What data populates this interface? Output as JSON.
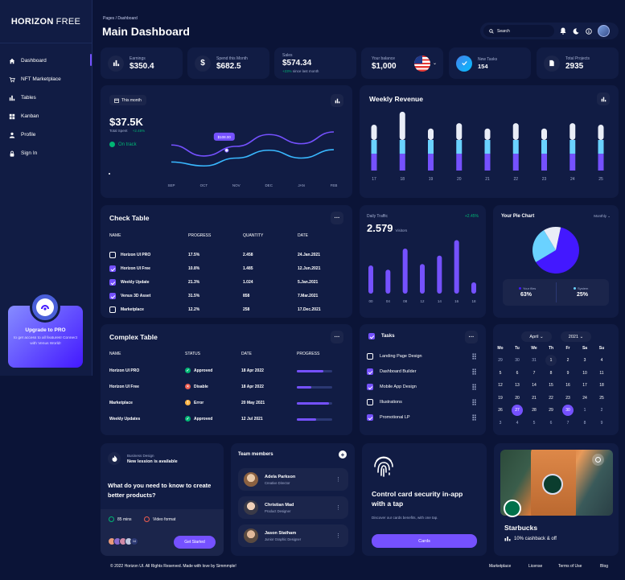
{
  "brand": {
    "bold": "HORIZON",
    "light": "FREE"
  },
  "nav": [
    {
      "label": "Dashboard"
    },
    {
      "label": "NFT Marketplace"
    },
    {
      "label": "Tables"
    },
    {
      "label": "Kanban"
    },
    {
      "label": "Profile"
    },
    {
      "label": "Sign In"
    }
  ],
  "upgrade": {
    "title": "Upgrade to PRO",
    "text": "to get access to all features! Connect with Venus World!"
  },
  "header": {
    "breadcrumb": "Pages / Dashboard",
    "title": "Main Dashboard",
    "search_placeholder": "Search"
  },
  "stats": [
    {
      "label": "Earnings",
      "value": "$350.4"
    },
    {
      "label": "Spend this Month",
      "value": "$682.5"
    },
    {
      "label": "Sales",
      "value": "$574.34",
      "change": "+23%",
      "change_text": "since last month"
    },
    {
      "label": "Your balance",
      "value": "$1,000"
    },
    {
      "label": "New Tasks",
      "value": "154"
    },
    {
      "label": "Total Projects",
      "value": "2935"
    }
  ],
  "total_spent": {
    "range_label": "This month",
    "value": "$37.5K",
    "label": "Total Spent",
    "change": "+2.45%",
    "status": "On track",
    "tooltip": "$108.00"
  },
  "total_spent_chart": {
    "type": "line",
    "x": [
      "SEP",
      "OCT",
      "NOV",
      "DEC",
      "JAN",
      "FEB"
    ],
    "series": [
      {
        "values": [
          110,
          68,
          105,
          150,
          115,
          160
        ]
      },
      {
        "values": [
          45,
          30,
          60,
          90,
          60,
          92
        ]
      }
    ],
    "colors": [
      "#7551ff",
      "#39b8ff"
    ]
  },
  "weekly_revenue": {
    "title": "Weekly Revenue"
  },
  "weekly_revenue_chart": {
    "type": "bar",
    "categories": [
      "17",
      "18",
      "19",
      "20",
      "21",
      "22",
      "23",
      "24",
      "25"
    ],
    "series": [
      {
        "values": [
          22,
          22,
          22,
          22,
          22,
          22,
          22,
          22,
          22
        ]
      },
      {
        "values": [
          18,
          18,
          18,
          18,
          18,
          18,
          18,
          18,
          18
        ]
      },
      {
        "values": [
          20,
          37,
          15,
          22,
          15,
          22,
          15,
          22,
          20
        ]
      }
    ],
    "colors": [
      "#7551ff",
      "#6ad2ff",
      "#e9edf7"
    ]
  },
  "check_table": {
    "title": "Check Table",
    "headers": [
      "NAME",
      "PROGRESS",
      "QUANTITY",
      "DATE"
    ],
    "rows": [
      {
        "name": "Horizon UI PRO",
        "progress": "17.5%",
        "qty": "2.458",
        "date": "24.Jan.2021",
        "checked": false
      },
      {
        "name": "Horizon UI Free",
        "progress": "10.8%",
        "qty": "1.485",
        "date": "12.Jun.2021",
        "checked": true
      },
      {
        "name": "Weekly Update",
        "progress": "21.3%",
        "qty": "1.024",
        "date": "5.Jan.2021",
        "checked": true
      },
      {
        "name": "Venus 3D Asset",
        "progress": "31.5%",
        "qty": "858",
        "date": "7.Mar.2021",
        "checked": true
      },
      {
        "name": "Marketplace",
        "progress": "12.2%",
        "qty": "258",
        "date": "17.Dec.2021",
        "checked": false
      }
    ]
  },
  "daily_traffic": {
    "title": "Daily Traffic",
    "change": "+2.45%",
    "value": "2.579",
    "unit": "Visitors"
  },
  "daily_traffic_chart": {
    "type": "bar",
    "categories": [
      "00",
      "04",
      "08",
      "12",
      "14",
      "16",
      "18"
    ],
    "values": [
      20,
      17,
      32,
      21,
      27,
      38,
      8
    ],
    "ylim": [
      0,
      40
    ]
  },
  "pie": {
    "title": "Your Pie Chart",
    "period": "Monthly",
    "legend": [
      {
        "name": "Your files",
        "value": "63%"
      },
      {
        "name": "System",
        "value": "25%"
      }
    ]
  },
  "pie_chart": {
    "type": "pie",
    "slices": [
      {
        "value": 63,
        "color": "#4318ff"
      },
      {
        "value": 25,
        "color": "#6ad2ff"
      },
      {
        "value": 12,
        "color": "#e9edf7"
      }
    ]
  },
  "complex_table": {
    "title": "Complex Table",
    "headers": [
      "NAME",
      "STATUS",
      "DATE",
      "PROGRESS"
    ],
    "rows": [
      {
        "name": "Horizon UI PRO",
        "status": "Approved",
        "date": "18 Apr 2022",
        "progress": 0.75,
        "status_color": "#01b574",
        "icon": "check-icon"
      },
      {
        "name": "Horizon UI Free",
        "status": "Disable",
        "date": "18 Apr 2022",
        "progress": 0.4,
        "status_color": "#ee5d50",
        "icon": "x-icon"
      },
      {
        "name": "Marketplace",
        "status": "Error",
        "date": "20 May 2021",
        "progress": 0.92,
        "status_color": "#ffb547",
        "icon": "alert-icon"
      },
      {
        "name": "Weekly Updates",
        "status": "Approved",
        "date": "12 Jul 2021",
        "progress": 0.55,
        "status_color": "#01b574",
        "icon": "check-icon"
      }
    ]
  },
  "tasks": {
    "title": "Tasks",
    "items": [
      {
        "label": "Landing Page Design",
        "checked": false
      },
      {
        "label": "Dashboard Builder",
        "checked": true
      },
      {
        "label": "Mobile App Design",
        "checked": true
      },
      {
        "label": "Illustrations",
        "checked": false
      },
      {
        "label": "Promotional LP",
        "checked": true
      }
    ]
  },
  "calendar": {
    "month": "April",
    "year": "2021",
    "weekdays": [
      "Mo",
      "Tu",
      "We",
      "Th",
      "Fr",
      "Sa",
      "Su"
    ],
    "weeks": [
      [
        "29",
        "30",
        "31",
        "1",
        "2",
        "3",
        "4"
      ],
      [
        "5",
        "6",
        "7",
        "8",
        "9",
        "10",
        "11"
      ],
      [
        "12",
        "13",
        "14",
        "15",
        "16",
        "17",
        "18"
      ],
      [
        "19",
        "20",
        "21",
        "22",
        "23",
        "24",
        "25"
      ],
      [
        "26",
        "27",
        "28",
        "29",
        "30",
        "1",
        "2"
      ],
      [
        "3",
        "4",
        "5",
        "6",
        "7",
        "8",
        "9"
      ]
    ]
  },
  "lesson": {
    "tag": "Business Design",
    "subtitle": "New lession is available",
    "question": "What do you need to know to create better products?",
    "duration": "85 mins",
    "format": "Video format",
    "cta": "Get Started",
    "more": "14"
  },
  "team": {
    "title": "Team members",
    "members": [
      {
        "name": "Adela Parkson",
        "role": "Creative Director"
      },
      {
        "name": "Christian Mad",
        "role": "Product Designer"
      },
      {
        "name": "Jason Statham",
        "role": "Junior Graphic Designer"
      }
    ]
  },
  "security": {
    "title": "Control card security in-app with a tap",
    "text": "Discover our cards benefits, with one tap.",
    "cta": "Cards"
  },
  "starbucks": {
    "name": "Starbucks",
    "offer": "10% cashback & off"
  },
  "footer": {
    "copy": "© 2022 Horizon UI. All Rights Reserved. Made with love by Simmmple!",
    "links": [
      "Marketplace",
      "License",
      "Terms of Use",
      "Blog"
    ]
  }
}
